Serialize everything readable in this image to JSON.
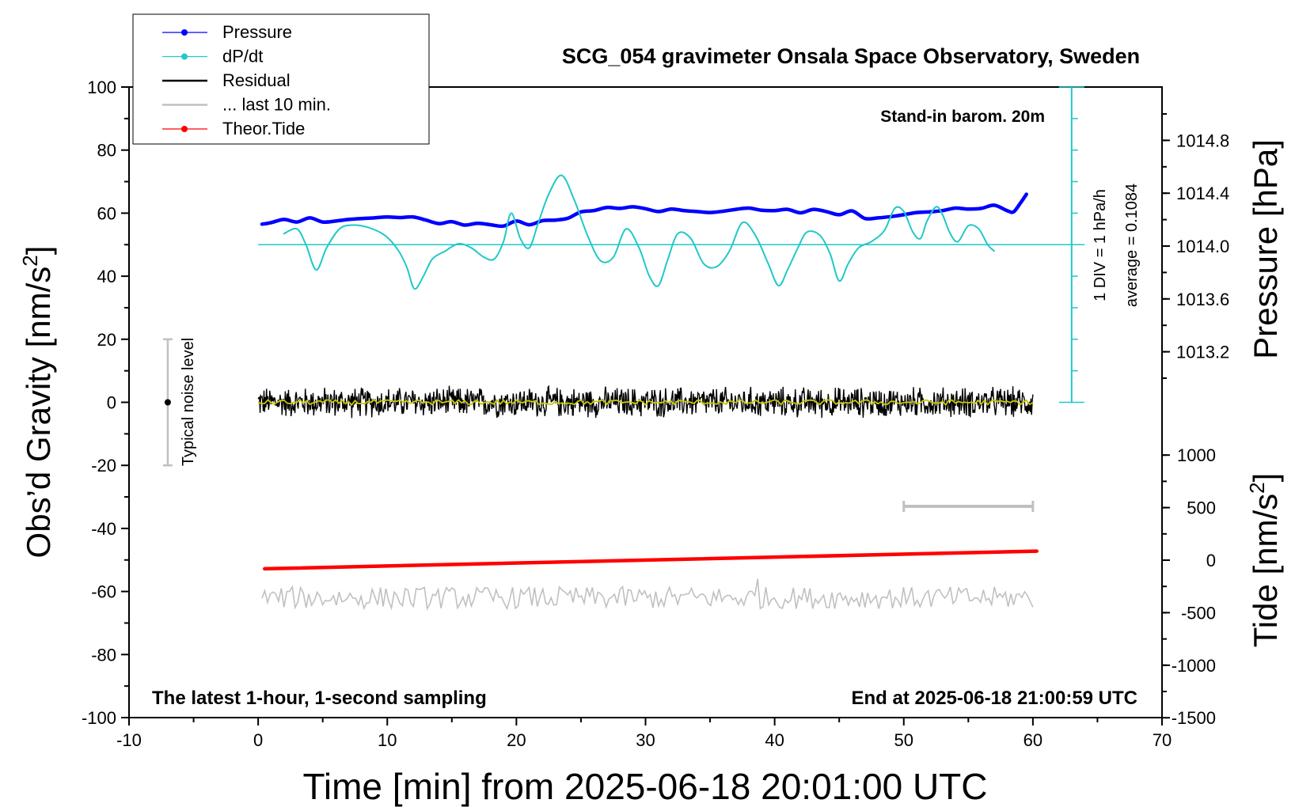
{
  "chart_data": {
    "type": "line",
    "title": "SCG_054 gravimeter Onsala Space Observatory, Sweden",
    "xlabel": "Time [min] from 2025-06-18 20:01:00 UTC",
    "ylabel_left": "Obs’d Gravity [nm/s",
    "ylabel_left_sup": "2",
    "ylabel_left_end": "]",
    "ylabel_right_pressure": "Pressure [hPa]",
    "ylabel_right_tide": "Tide [nm/s",
    "ylabel_right_tide_sup": "2",
    "ylabel_right_tide_end": "]",
    "xlim": [
      -10,
      70
    ],
    "ylim": [
      -100,
      100
    ],
    "x_ticks": [
      "-10",
      "0",
      "10",
      "20",
      "30",
      "40",
      "50",
      "60",
      "70"
    ],
    "y_ticks": [
      "100",
      "80",
      "60",
      "40",
      "20",
      "0",
      "-20",
      "-40",
      "-60",
      "-80",
      "-100"
    ],
    "pressure_ticks": [
      "1014.8",
      "1014.4",
      "1014.0",
      "1013.6",
      "1013.2"
    ],
    "tide_ticks": [
      "1000",
      "500",
      "0",
      "-500",
      "-1000",
      "-1500"
    ],
    "grid": false,
    "legend_position": "top-left",
    "legend": [
      {
        "label": "Pressure",
        "color": "#0000ff",
        "marker": true
      },
      {
        "label": "dP/dt",
        "color": "#20c8c8",
        "marker": true
      },
      {
        "label": "Residual",
        "color": "#000000",
        "marker": false
      },
      {
        "label": "... last 10 min.",
        "color": "#c0c0c0",
        "marker": false
      },
      {
        "label": "Theor.Tide",
        "color": "#ff0000",
        "marker": true
      }
    ],
    "annotations": {
      "barometer": "Stand-in barom. 20m",
      "div_label": "1 DIV = 1 hPa/h",
      "average_label": "average = 0.1084",
      "noise_label": "Typical noise level",
      "bottom_left": "The latest 1-hour, 1-second sampling",
      "bottom_right": "End at 2025-06-18 21:00:59 UTC"
    },
    "series": [
      {
        "name": "Pressure",
        "color": "#0000ff",
        "units": "nm/s2 plot scale",
        "x": [
          0.3,
          1,
          2,
          3,
          4,
          5,
          6,
          7,
          8,
          9,
          10,
          11,
          12,
          13,
          14,
          15,
          16,
          17,
          18,
          19,
          20,
          21,
          22,
          23,
          24,
          25,
          26,
          27,
          28,
          29,
          30,
          31,
          32,
          33,
          34,
          35,
          36,
          37,
          38,
          39,
          40,
          41,
          42,
          43,
          44,
          45,
          46,
          47,
          48,
          49,
          50,
          51,
          52,
          53,
          54,
          55,
          56,
          57,
          58,
          58.5,
          59,
          59.5
        ],
        "values": [
          56.5,
          57,
          58,
          57.2,
          58.5,
          57.2,
          57.5,
          58,
          58.3,
          58.5,
          58.8,
          58.6,
          58.8,
          57.8,
          56.7,
          57.3,
          56.2,
          56.8,
          56.3,
          55.9,
          57.5,
          56.3,
          57.6,
          57.8,
          58.4,
          60.4,
          60.8,
          61.8,
          61.5,
          62,
          61.4,
          60.5,
          61.3,
          60.8,
          60.5,
          60.2,
          60.6,
          61.2,
          61.6,
          60.9,
          60.8,
          61.2,
          60.1,
          61.2,
          60.5,
          59.5,
          60.7,
          58.3,
          58.5,
          58.9,
          59.5,
          60.2,
          60.4,
          60.8,
          61.6,
          61.3,
          61.5,
          62.5,
          60.8,
          60.4,
          63,
          66
        ]
      },
      {
        "name": "dP/dt",
        "color": "#20c8c8",
        "units": "nm/s2 plot scale",
        "x": [
          2,
          3,
          3.7,
          4.5,
          5.3,
          6.3,
          7.3,
          8.5,
          9.8,
          10.8,
          11.5,
          12.1,
          12.8,
          13.5,
          14.5,
          15.5,
          16.5,
          17.5,
          18.3,
          19,
          19.6,
          20.3,
          21,
          21.7,
          22.5,
          23.5,
          24.5,
          25.5,
          26.5,
          27.5,
          28.5,
          29.5,
          30.3,
          31,
          31.7,
          32.5,
          33.5,
          34.5,
          35.5,
          36.5,
          37.5,
          38.5,
          39.5,
          40.3,
          41,
          41.8,
          42.5,
          43.5,
          44.3,
          45,
          45.7,
          46.5,
          47.5,
          48.5,
          49.3,
          50,
          50.7,
          51.3,
          51.8,
          52.5,
          53,
          53.6,
          54.2,
          55,
          55.8,
          56.5,
          57
        ],
        "values": [
          53.5,
          55,
          50,
          42,
          49,
          55,
          56.2,
          55.5,
          53,
          48.5,
          43,
          36,
          40,
          45.5,
          48,
          50.3,
          49,
          46,
          45.5,
          51,
          60,
          52,
          49,
          57,
          66,
          72,
          64,
          53,
          45,
          46,
          55,
          49,
          40,
          37,
          45,
          53.5,
          52,
          44,
          43,
          48,
          57,
          53,
          44,
          37,
          42,
          49,
          54,
          53,
          47,
          38.5,
          44,
          49,
          51,
          54.5,
          61.5,
          60.5,
          54,
          52,
          57.5,
          62,
          59.5,
          53.5,
          51,
          56,
          55,
          50,
          48
        ]
      },
      {
        "name": "Theor.Tide",
        "color": "#ff0000",
        "units": "nm/s2 plot scale",
        "x": [
          0.5,
          60.3
        ],
        "values": [
          -52.8,
          -47.2
        ]
      }
    ],
    "residual": {
      "name": "Residual",
      "color": "#000000",
      "smoothed_color": "#c8c800",
      "x_range": [
        0,
        60
      ],
      "center": 0,
      "amplitude": 5
    },
    "residual_zoom": {
      "name": "... last 10 min.",
      "color": "#c0c0c0",
      "x_range": [
        0.3,
        60
      ],
      "center": -62,
      "amplitude": 3.5
    },
    "noise_bar": {
      "x": -7,
      "low": -20,
      "high": 20,
      "center": 0
    },
    "ten_min_bar": {
      "x_from": 50,
      "x_to": 60,
      "y": -33
    },
    "dpdt_baseline": {
      "x_from": 0,
      "x_to": 64,
      "y": 50
    },
    "div_scale": {
      "x": 63,
      "from": 0,
      "to": 100,
      "step": 10
    }
  }
}
